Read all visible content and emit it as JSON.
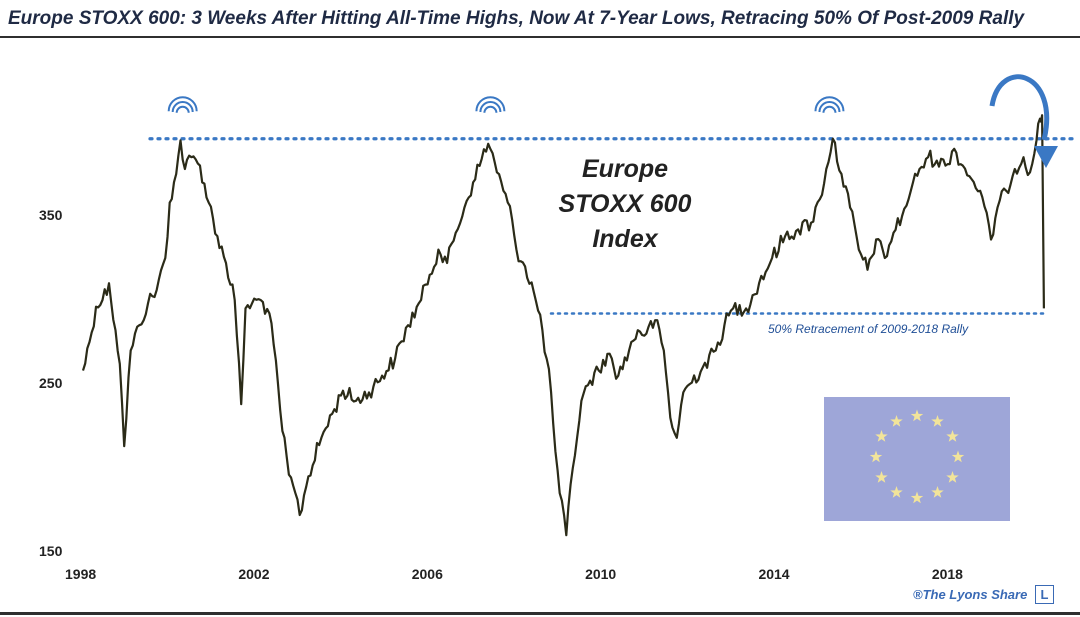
{
  "title": "Europe STOXX 600: 3 Weeks After Hitting All-Time Highs, Now At 7-Year Lows, Retracing 50% Of Post-2009 Rally",
  "in_chart_title": [
    "Europe",
    "STOXX 600",
    "Index"
  ],
  "retracement_label": "50% Retracement of 2009-2018 Rally",
  "credit": "®The Lyons Share",
  "logo_letter": "L",
  "colors": {
    "series": "#2b2b18",
    "reference_line": "#3a78c4",
    "title": "#1f2a44",
    "flag_bg": "#9ea6d8",
    "flag_star": "#f2e49a"
  },
  "chart_data": {
    "type": "line",
    "title": "Europe STOXX 600: 3 Weeks After Hitting All-Time Highs, Now At 7-Year Lows, Retracing 50% Of Post-2009 Rally",
    "xlabel": "",
    "ylabel": "",
    "xlim": [
      1998,
      2020.15
    ],
    "ylim": [
      150,
      420
    ],
    "x_ticks": [
      "1998",
      "2002",
      "2006",
      "2010",
      "2014",
      "2018"
    ],
    "y_ticks": [
      "150",
      "250",
      "350"
    ],
    "grid": false,
    "legend": "none",
    "series": [
      {
        "x": [
          1998.0,
          1998.15,
          1998.3,
          1998.45,
          1998.6,
          1998.75,
          1998.85,
          1998.95,
          1999.1,
          1999.3,
          1999.5,
          1999.7,
          1999.9,
          2000.0,
          2000.15,
          2000.25,
          2000.35,
          2000.5,
          2000.7,
          2000.9,
          2001.1,
          2001.3,
          2001.5,
          2001.65,
          2001.75,
          2001.9,
          2002.1,
          2002.3,
          2002.5,
          2002.6,
          2002.75,
          2002.9,
          2003.0,
          2003.2,
          2003.5,
          2003.8,
          2004.0,
          2004.3,
          2004.6,
          2004.9,
          2005.2,
          2005.5,
          2005.8,
          2006.0,
          2006.2,
          2006.4,
          2006.6,
          2006.8,
          2007.0,
          2007.2,
          2007.35,
          2007.5,
          2007.7,
          2007.9,
          2008.0,
          2008.2,
          2008.4,
          2008.6,
          2008.8,
          2008.9,
          2009.0,
          2009.15,
          2009.3,
          2009.5,
          2009.7,
          2009.9,
          2010.1,
          2010.35,
          2010.6,
          2010.8,
          2011.0,
          2011.2,
          2011.4,
          2011.55,
          2011.7,
          2011.85,
          2012.0,
          2012.3,
          2012.6,
          2012.8,
          2013.0,
          2013.3,
          2013.6,
          2013.9,
          2014.2,
          2014.5,
          2014.8,
          2015.0,
          2015.15,
          2015.3,
          2015.5,
          2015.7,
          2015.9,
          2016.1,
          2016.3,
          2016.5,
          2016.7,
          2016.9,
          2017.1,
          2017.3,
          2017.5,
          2017.7,
          2017.9,
          2018.1,
          2018.3,
          2018.5,
          2018.7,
          2018.95,
          2019.1,
          2019.3,
          2019.5,
          2019.7,
          2019.85,
          2020.0,
          2020.08,
          2020.13,
          2020.17
        ],
        "values": [
          258,
          275,
          296,
          300,
          310,
          282,
          262,
          213,
          270,
          285,
          298,
          306,
          325,
          358,
          375,
          395,
          378,
          385,
          380,
          358,
          338,
          322,
          300,
          238,
          295,
          298,
          300,
          292,
          250,
          222,
          196,
          185,
          172,
          195,
          218,
          235,
          246,
          240,
          245,
          255,
          265,
          285,
          300,
          315,
          330,
          322,
          340,
          355,
          370,
          384,
          393,
          382,
          365,
          348,
          330,
          320,
          305,
          282,
          245,
          210,
          185,
          160,
          200,
          240,
          252,
          258,
          268,
          255,
          270,
          282,
          280,
          288,
          270,
          230,
          218,
          245,
          250,
          260,
          270,
          285,
          295,
          295,
          310,
          325,
          338,
          342,
          346,
          360,
          378,
          396,
          375,
          355,
          330,
          318,
          336,
          325,
          340,
          350,
          365,
          378,
          385,
          383,
          380,
          390,
          380,
          372,
          365,
          336,
          355,
          365,
          378,
          385,
          376,
          395,
          408,
          410,
          295
        ]
      }
    ],
    "reference_lines": [
      {
        "type": "horizontal",
        "y": 396,
        "x_start": 1998.0,
        "x_end": 2020.15
      },
      {
        "type": "horizontal",
        "y": 292,
        "x_start": 2009.9,
        "x_end": 2020.15,
        "label": "50% Retracement of 2009-2018 Rally"
      }
    ],
    "peak_markers_x": [
      2000.3,
      2007.4,
      2015.2
    ]
  }
}
